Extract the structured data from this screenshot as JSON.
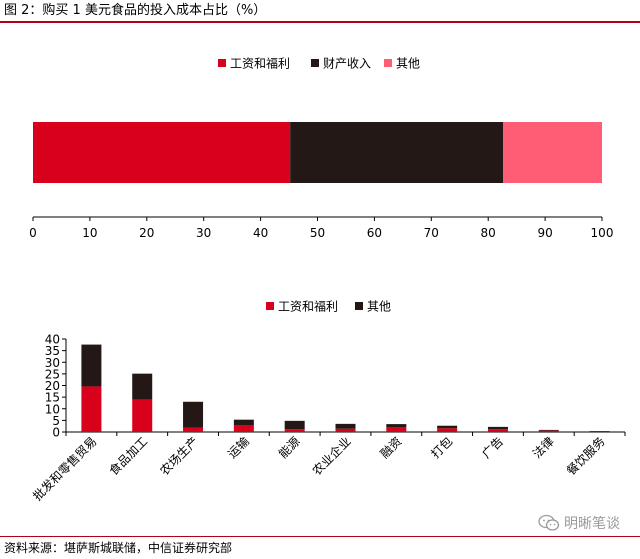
{
  "figure_title": "图 2：购买 1 美元食品的投入成本占比（%）",
  "source_note": "资料来源：堪萨斯城联储，中信证券研究部",
  "watermark_text": "明晰笔谈",
  "colors": {
    "red": "#d9001b",
    "black": "#231815",
    "pink": "#ff5c75",
    "rule": "#b0001a"
  },
  "chart_data": [
    {
      "type": "bar",
      "orientation": "horizontal",
      "stacked": true,
      "title": "",
      "xlabel": "",
      "ylabel": "",
      "xlim": [
        0,
        100
      ],
      "xticks": [
        0,
        10,
        20,
        30,
        40,
        50,
        60,
        70,
        80,
        90,
        100
      ],
      "legend_position": "top-center",
      "grid": false,
      "series": [
        {
          "name": "工资和福利",
          "color": "#d9001b",
          "values": [
            45.2
          ]
        },
        {
          "name": "财产收入",
          "color": "#231815",
          "values": [
            37.4
          ]
        },
        {
          "name": "其他",
          "color": "#ff5c75",
          "values": [
            17.4
          ]
        }
      ]
    },
    {
      "type": "bar",
      "orientation": "vertical",
      "stacked": true,
      "title": "",
      "xlabel": "",
      "ylabel": "",
      "ylim": [
        0,
        40
      ],
      "yticks": [
        0,
        5,
        10,
        15,
        20,
        25,
        30,
        35,
        40
      ],
      "legend_position": "top-center",
      "grid": false,
      "categories": [
        "批发和零售贸易",
        "食品加工",
        "农场生产",
        "运输",
        "能源",
        "农业企业",
        "融资",
        "打包",
        "广告",
        "法律",
        "餐饮服务"
      ],
      "series": [
        {
          "name": "工资和福利",
          "color": "#d9001b",
          "values": [
            19.6,
            13.9,
            1.8,
            3.0,
            1.2,
            1.4,
            2.0,
            1.6,
            1.2,
            0.6,
            0.2
          ]
        },
        {
          "name": "其他",
          "color": "#231815",
          "values": [
            18.0,
            11.2,
            11.2,
            2.3,
            3.6,
            2.1,
            1.4,
            1.1,
            1.0,
            0.3,
            0.2
          ]
        }
      ]
    }
  ]
}
